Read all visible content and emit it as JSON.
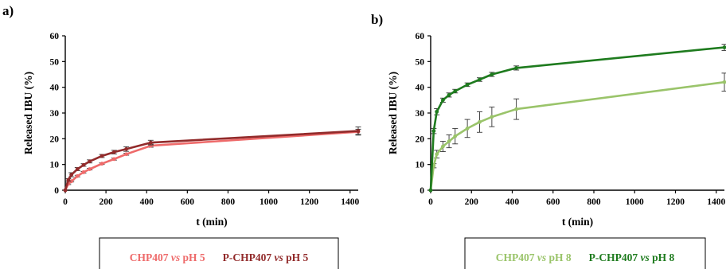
{
  "chart_data": [
    {
      "type": "line",
      "panel_label": "a)",
      "xlabel": "t (min)",
      "ylabel": "Released IBU (%)",
      "xlim": [
        0,
        1440
      ],
      "ylim": [
        0,
        60
      ],
      "xticks": [
        "0",
        "200",
        "400",
        "600",
        "800",
        "1000",
        "1200",
        "1400"
      ],
      "yticks": [
        "0",
        "10",
        "20",
        "30",
        "40",
        "50",
        "60"
      ],
      "grid": false,
      "legend": "bottom-boxed",
      "series": [
        {
          "name": "CHP407 vs pH 5",
          "legend_parts": [
            "CHP407 ",
            "vs",
            " pH 5"
          ],
          "color": "#ee6a6a",
          "x": [
            0,
            15,
            30,
            60,
            90,
            120,
            180,
            240,
            300,
            420,
            1440
          ],
          "y": [
            0,
            2.5,
            3.5,
            5.5,
            7,
            8.2,
            10.3,
            12.1,
            14,
            17.3,
            22.7
          ],
          "err": [
            0,
            0.3,
            0.3,
            0.3,
            0.3,
            0.3,
            0.3,
            0.4,
            0.4,
            0.6,
            1.0
          ]
        },
        {
          "name": "P-CHP407 vs pH 5",
          "legend_parts": [
            "P-CHP407 ",
            "vs",
            " pH 5"
          ],
          "color": "#922b2b",
          "x": [
            0,
            15,
            30,
            60,
            90,
            120,
            180,
            240,
            300,
            420,
            1440
          ],
          "y": [
            0,
            4,
            6,
            8.2,
            9.8,
            11.2,
            13.3,
            14.8,
            16,
            18.5,
            23
          ],
          "err": [
            0,
            0.5,
            0.8,
            0.6,
            0.5,
            0.6,
            0.6,
            0.7,
            0.9,
            0.9,
            1.6
          ]
        }
      ]
    },
    {
      "type": "line",
      "panel_label": "b)",
      "xlabel": "t (min)",
      "ylabel": "Released IBU (%)",
      "xlim": [
        0,
        1440
      ],
      "ylim": [
        0,
        60
      ],
      "xticks": [
        "0",
        "200",
        "400",
        "600",
        "800",
        "1000",
        "1200",
        "1400"
      ],
      "yticks": [
        "0",
        "10",
        "20",
        "30",
        "40",
        "50",
        "60"
      ],
      "grid": false,
      "legend": "bottom-boxed",
      "series": [
        {
          "name": "CHP407 vs pH 8",
          "legend_parts": [
            "CHP407 ",
            "vs",
            " pH 8"
          ],
          "color": "#9ac46a",
          "x": [
            0,
            15,
            30,
            60,
            90,
            120,
            180,
            240,
            300,
            420,
            1440
          ],
          "y": [
            0,
            9.5,
            14,
            17,
            19,
            21,
            24,
            26.5,
            28.5,
            31.5,
            42
          ],
          "err": [
            0,
            0.8,
            1.5,
            2.0,
            2.5,
            3.0,
            3.5,
            4.0,
            3.8,
            4.0,
            3.5
          ]
        },
        {
          "name": "P-CHP407 vs pH 8",
          "legend_parts": [
            "P-CHP407 ",
            "vs",
            " pH 8"
          ],
          "color": "#1e7b1e",
          "x": [
            0,
            15,
            30,
            60,
            90,
            120,
            180,
            240,
            300,
            420,
            1440
          ],
          "y": [
            0,
            23,
            30.5,
            35,
            37,
            38.5,
            41,
            43,
            45,
            47.5,
            55.5
          ],
          "err": [
            0,
            1.0,
            1.2,
            0.8,
            0.8,
            0.7,
            0.7,
            0.7,
            0.8,
            0.8,
            1.2
          ]
        }
      ]
    }
  ]
}
